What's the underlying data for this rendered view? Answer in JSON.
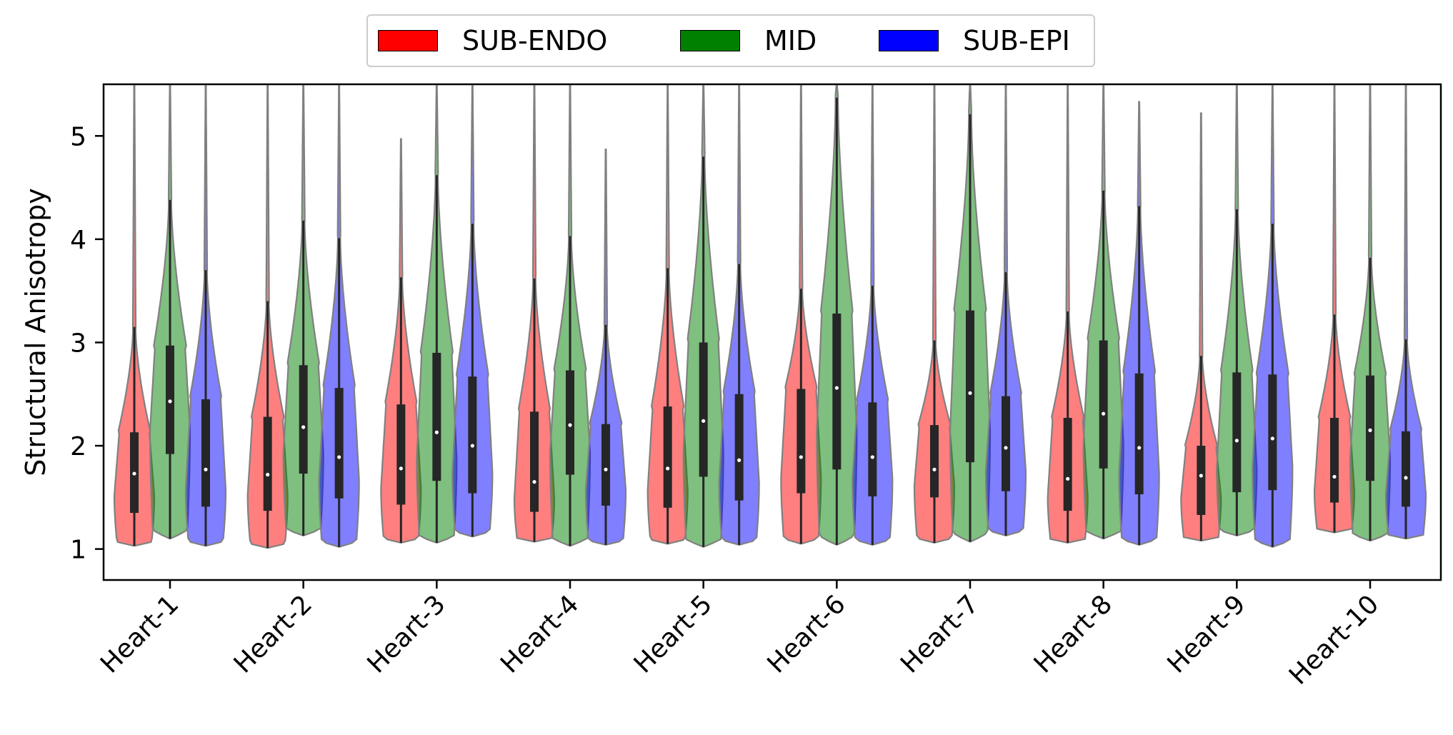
{
  "chart_data": {
    "type": "violin",
    "ylabel": "Structural Anisotropy",
    "xlabel": "",
    "ylim": [
      0.7,
      5.5
    ],
    "yticks": [
      1,
      2,
      3,
      4,
      5
    ],
    "categories": [
      "Heart-1",
      "Heart-2",
      "Heart-3",
      "Heart-4",
      "Heart-5",
      "Heart-6",
      "Heart-7",
      "Heart-8",
      "Heart-9",
      "Heart-10"
    ],
    "legend_position": "top-center",
    "series": [
      {
        "name": "SUB-ENDO",
        "color": "#ff0000",
        "stats": [
          {
            "min": 1.03,
            "q1": 1.35,
            "median": 1.73,
            "q3": 2.13,
            "whisker": 3.15,
            "max": 5.5
          },
          {
            "min": 1.01,
            "q1": 1.37,
            "median": 1.72,
            "q3": 2.28,
            "whisker": 3.4,
            "max": 5.5
          },
          {
            "min": 1.06,
            "q1": 1.43,
            "median": 1.78,
            "q3": 2.4,
            "whisker": 3.63,
            "max": 4.97
          },
          {
            "min": 1.07,
            "q1": 1.36,
            "median": 1.65,
            "q3": 2.33,
            "whisker": 3.62,
            "max": 5.5
          },
          {
            "min": 1.05,
            "q1": 1.4,
            "median": 1.78,
            "q3": 2.38,
            "whisker": 3.72,
            "max": 5.5
          },
          {
            "min": 1.05,
            "q1": 1.54,
            "median": 1.89,
            "q3": 2.55,
            "whisker": 3.52,
            "max": 5.5
          },
          {
            "min": 1.06,
            "q1": 1.5,
            "median": 1.77,
            "q3": 2.2,
            "whisker": 3.02,
            "max": 5.5
          },
          {
            "min": 1.06,
            "q1": 1.37,
            "median": 1.68,
            "q3": 2.27,
            "whisker": 3.3,
            "max": 5.5
          },
          {
            "min": 1.08,
            "q1": 1.33,
            "median": 1.71,
            "q3": 2.0,
            "whisker": 2.87,
            "max": 5.22
          },
          {
            "min": 1.16,
            "q1": 1.45,
            "median": 1.7,
            "q3": 2.27,
            "whisker": 3.27,
            "max": 5.5
          }
        ]
      },
      {
        "name": "MID",
        "color": "#008000",
        "stats": [
          {
            "min": 1.1,
            "q1": 1.92,
            "median": 2.43,
            "q3": 2.97,
            "whisker": 4.38,
            "max": 5.5
          },
          {
            "min": 1.13,
            "q1": 1.73,
            "median": 2.18,
            "q3": 2.78,
            "whisker": 4.18,
            "max": 5.5
          },
          {
            "min": 1.06,
            "q1": 1.66,
            "median": 2.13,
            "q3": 2.9,
            "whisker": 4.62,
            "max": 5.5
          },
          {
            "min": 1.03,
            "q1": 1.72,
            "median": 2.2,
            "q3": 2.73,
            "whisker": 4.03,
            "max": 5.5
          },
          {
            "min": 1.02,
            "q1": 1.7,
            "median": 2.24,
            "q3": 3.0,
            "whisker": 4.8,
            "max": 5.5
          },
          {
            "min": 1.04,
            "q1": 1.77,
            "median": 2.56,
            "q3": 3.28,
            "whisker": 5.37,
            "max": 5.5
          },
          {
            "min": 1.07,
            "q1": 1.84,
            "median": 2.51,
            "q3": 3.31,
            "whisker": 5.21,
            "max": 5.5
          },
          {
            "min": 1.1,
            "q1": 1.78,
            "median": 2.31,
            "q3": 3.02,
            "whisker": 4.47,
            "max": 5.5
          },
          {
            "min": 1.13,
            "q1": 1.55,
            "median": 2.05,
            "q3": 2.71,
            "whisker": 4.29,
            "max": 5.5
          },
          {
            "min": 1.08,
            "q1": 1.66,
            "median": 2.15,
            "q3": 2.68,
            "whisker": 3.82,
            "max": 5.5
          }
        ]
      },
      {
        "name": "SUB-EPI",
        "color": "#0000ff",
        "stats": [
          {
            "min": 1.03,
            "q1": 1.41,
            "median": 1.77,
            "q3": 2.45,
            "whisker": 3.7,
            "max": 5.5
          },
          {
            "min": 1.02,
            "q1": 1.49,
            "median": 1.89,
            "q3": 2.56,
            "whisker": 4.01,
            "max": 5.5
          },
          {
            "min": 1.12,
            "q1": 1.54,
            "median": 2.0,
            "q3": 2.67,
            "whisker": 4.15,
            "max": 5.5
          },
          {
            "min": 1.04,
            "q1": 1.42,
            "median": 1.77,
            "q3": 2.21,
            "whisker": 3.17,
            "max": 4.87
          },
          {
            "min": 1.04,
            "q1": 1.47,
            "median": 1.86,
            "q3": 2.5,
            "whisker": 3.76,
            "max": 5.5
          },
          {
            "min": 1.04,
            "q1": 1.51,
            "median": 1.89,
            "q3": 2.42,
            "whisker": 3.55,
            "max": 5.5
          },
          {
            "min": 1.13,
            "q1": 1.56,
            "median": 1.98,
            "q3": 2.48,
            "whisker": 3.68,
            "max": 5.5
          },
          {
            "min": 1.04,
            "q1": 1.53,
            "median": 1.98,
            "q3": 2.7,
            "whisker": 4.32,
            "max": 5.33
          },
          {
            "min": 1.02,
            "q1": 1.57,
            "median": 2.07,
            "q3": 2.69,
            "whisker": 4.15,
            "max": 5.5
          },
          {
            "min": 1.1,
            "q1": 1.41,
            "median": 1.69,
            "q3": 2.14,
            "whisker": 3.03,
            "max": 5.5
          }
        ]
      }
    ]
  }
}
